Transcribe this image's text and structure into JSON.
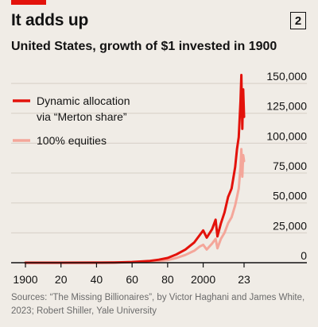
{
  "header": {
    "title": "It adds up",
    "chart_number": "2",
    "subtitle": "United States, growth of $1 invested in 1900"
  },
  "footer": {
    "source": "Sources: “The Missing Billionaires”, by Victor Haghani and James White, 2023; Robert Shiller, Yale University"
  },
  "colors": {
    "background": "#f0ece6",
    "accent_red": "#e3120b",
    "series_dynamic": "#e3120b",
    "series_equities": "#f4a69a",
    "axis": "#121212",
    "gridline": "#d6cfc6"
  },
  "chart_data": {
    "type": "line",
    "title": "United States, growth of $1 invested in 1900",
    "xlim": [
      1900,
      2023
    ],
    "ylim": [
      0,
      160000
    ],
    "x_ticks": [
      1900,
      1920,
      1940,
      1960,
      1980,
      2000,
      2023
    ],
    "x_tick_labels": [
      "1900",
      "20",
      "40",
      "60",
      "80",
      "2000",
      "23"
    ],
    "y_ticks": [
      0,
      25000,
      50000,
      75000,
      100000,
      125000,
      150000
    ],
    "y_tick_labels": [
      "0",
      "25,000",
      "50,000",
      "75,000",
      "100,000",
      "125,000",
      "150,000"
    ],
    "y_axis_side": "right",
    "grid": true,
    "legend_position": "top-left",
    "series": [
      {
        "name": "Dynamic allocation via “Merton share”",
        "legend_lines": [
          "Dynamic allocation",
          "via “Merton share”"
        ],
        "color": "#e3120b",
        "x": [
          1900,
          1920,
          1940,
          1950,
          1960,
          1970,
          1975,
          1980,
          1985,
          1990,
          1995,
          1998,
          2000,
          2002,
          2005,
          2007,
          2008,
          2010,
          2012,
          2014,
          2016,
          2018,
          2019,
          2020,
          2021,
          2021.5,
          2022,
          2022.5,
          2023
        ],
        "y": [
          1,
          20,
          80,
          200,
          600,
          1500,
          2500,
          4000,
          7000,
          11000,
          17000,
          23000,
          27000,
          21000,
          28000,
          36000,
          22000,
          33000,
          42000,
          55000,
          62000,
          80000,
          95000,
          105000,
          135000,
          157000,
          112000,
          145000,
          122000
        ]
      },
      {
        "name": "100% equities",
        "legend_lines": [
          "100% equities"
        ],
        "color": "#f4a69a",
        "x": [
          1900,
          1920,
          1940,
          1950,
          1960,
          1970,
          1975,
          1980,
          1985,
          1990,
          1995,
          1998,
          2000,
          2002,
          2005,
          2007,
          2008,
          2010,
          2012,
          2014,
          2016,
          2018,
          2019,
          2020,
          2021,
          2021.5,
          2022,
          2022.5,
          2023
        ],
        "y": [
          1,
          15,
          50,
          130,
          400,
          900,
          1400,
          2200,
          4000,
          6500,
          10000,
          13500,
          15000,
          11000,
          16000,
          20000,
          12000,
          20000,
          25000,
          33000,
          38000,
          48000,
          55000,
          62000,
          80000,
          95000,
          72000,
          90000,
          85000
        ]
      }
    ]
  }
}
